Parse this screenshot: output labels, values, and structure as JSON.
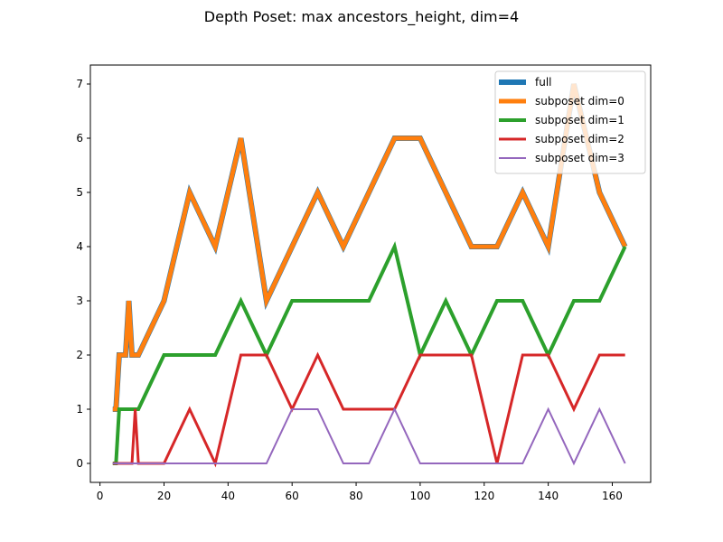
{
  "chart_data": {
    "type": "line",
    "title": "Depth Poset: max ancestors_height, dim=4",
    "xlabel": "",
    "ylabel": "",
    "xlim": [
      -3.0,
      172.0
    ],
    "ylim": [
      -0.35,
      7.35
    ],
    "xticks": [
      0,
      20,
      40,
      60,
      80,
      100,
      120,
      140,
      160
    ],
    "yticks": [
      0,
      1,
      2,
      3,
      4,
      5,
      6,
      7
    ],
    "grid": false,
    "legend_position": "top-right",
    "series": [
      {
        "name": "full",
        "color": "#1f77b4",
        "line_width": 6,
        "x": [
          4,
          5,
          6,
          8,
          9,
          10,
          11,
          12,
          20,
          28,
          36,
          44,
          52,
          60,
          68,
          76,
          84,
          92,
          100,
          108,
          116,
          124,
          132,
          140,
          148,
          156,
          164
        ],
        "y": [
          1,
          1,
          2,
          2,
          3,
          2,
          2,
          2,
          3,
          5,
          4,
          6,
          3,
          4,
          5,
          4,
          5,
          6,
          6,
          5,
          4,
          4,
          5,
          4,
          7,
          5,
          4
        ]
      },
      {
        "name": "subposet dim=0",
        "color": "#ff7f0e",
        "line_width": 5,
        "x": [
          4,
          5,
          6,
          8,
          9,
          10,
          11,
          12,
          20,
          28,
          36,
          44,
          52,
          60,
          68,
          76,
          84,
          92,
          100,
          108,
          116,
          124,
          132,
          140,
          148,
          156,
          164
        ],
        "y": [
          1,
          1,
          2,
          2,
          3,
          2,
          2,
          2,
          3,
          5,
          4,
          6,
          3,
          4,
          5,
          4,
          5,
          6,
          6,
          5,
          4,
          4,
          5,
          4,
          7,
          5,
          4
        ]
      },
      {
        "name": "subposet dim=1",
        "color": "#2ca02c",
        "line_width": 4,
        "x": [
          4,
          5,
          6,
          8,
          9,
          10,
          11,
          12,
          20,
          28,
          36,
          44,
          52,
          60,
          68,
          76,
          84,
          92,
          100,
          108,
          116,
          124,
          132,
          140,
          148,
          156,
          164
        ],
        "y": [
          0,
          0,
          1,
          1,
          1,
          1,
          1,
          1,
          2,
          2,
          2,
          3,
          2,
          3,
          3,
          3,
          3,
          4,
          2,
          3,
          2,
          3,
          3,
          2,
          3,
          3,
          4
        ]
      },
      {
        "name": "subposet dim=2",
        "color": "#d62728",
        "line_width": 3,
        "x": [
          4,
          5,
          6,
          8,
          9,
          10,
          11,
          12,
          20,
          28,
          36,
          44,
          52,
          60,
          68,
          76,
          84,
          92,
          100,
          108,
          116,
          124,
          132,
          140,
          148,
          156,
          164
        ],
        "y": [
          0,
          0,
          0,
          0,
          0,
          0,
          1,
          0,
          0,
          1,
          0,
          2,
          2,
          1,
          2,
          1,
          1,
          1,
          2,
          2,
          2,
          0,
          2,
          2,
          1,
          2,
          2
        ]
      },
      {
        "name": "subposet dim=3",
        "color": "#9467bd",
        "line_width": 2,
        "x": [
          4,
          5,
          6,
          8,
          9,
          10,
          11,
          12,
          20,
          28,
          36,
          44,
          52,
          60,
          68,
          76,
          84,
          92,
          100,
          108,
          116,
          124,
          132,
          140,
          148,
          156,
          164
        ],
        "y": [
          0,
          0,
          0,
          0,
          0,
          0,
          0,
          0,
          0,
          0,
          0,
          0,
          0,
          1,
          1,
          0,
          0,
          1,
          0,
          0,
          0,
          0,
          0,
          1,
          0,
          1,
          0
        ]
      }
    ]
  }
}
